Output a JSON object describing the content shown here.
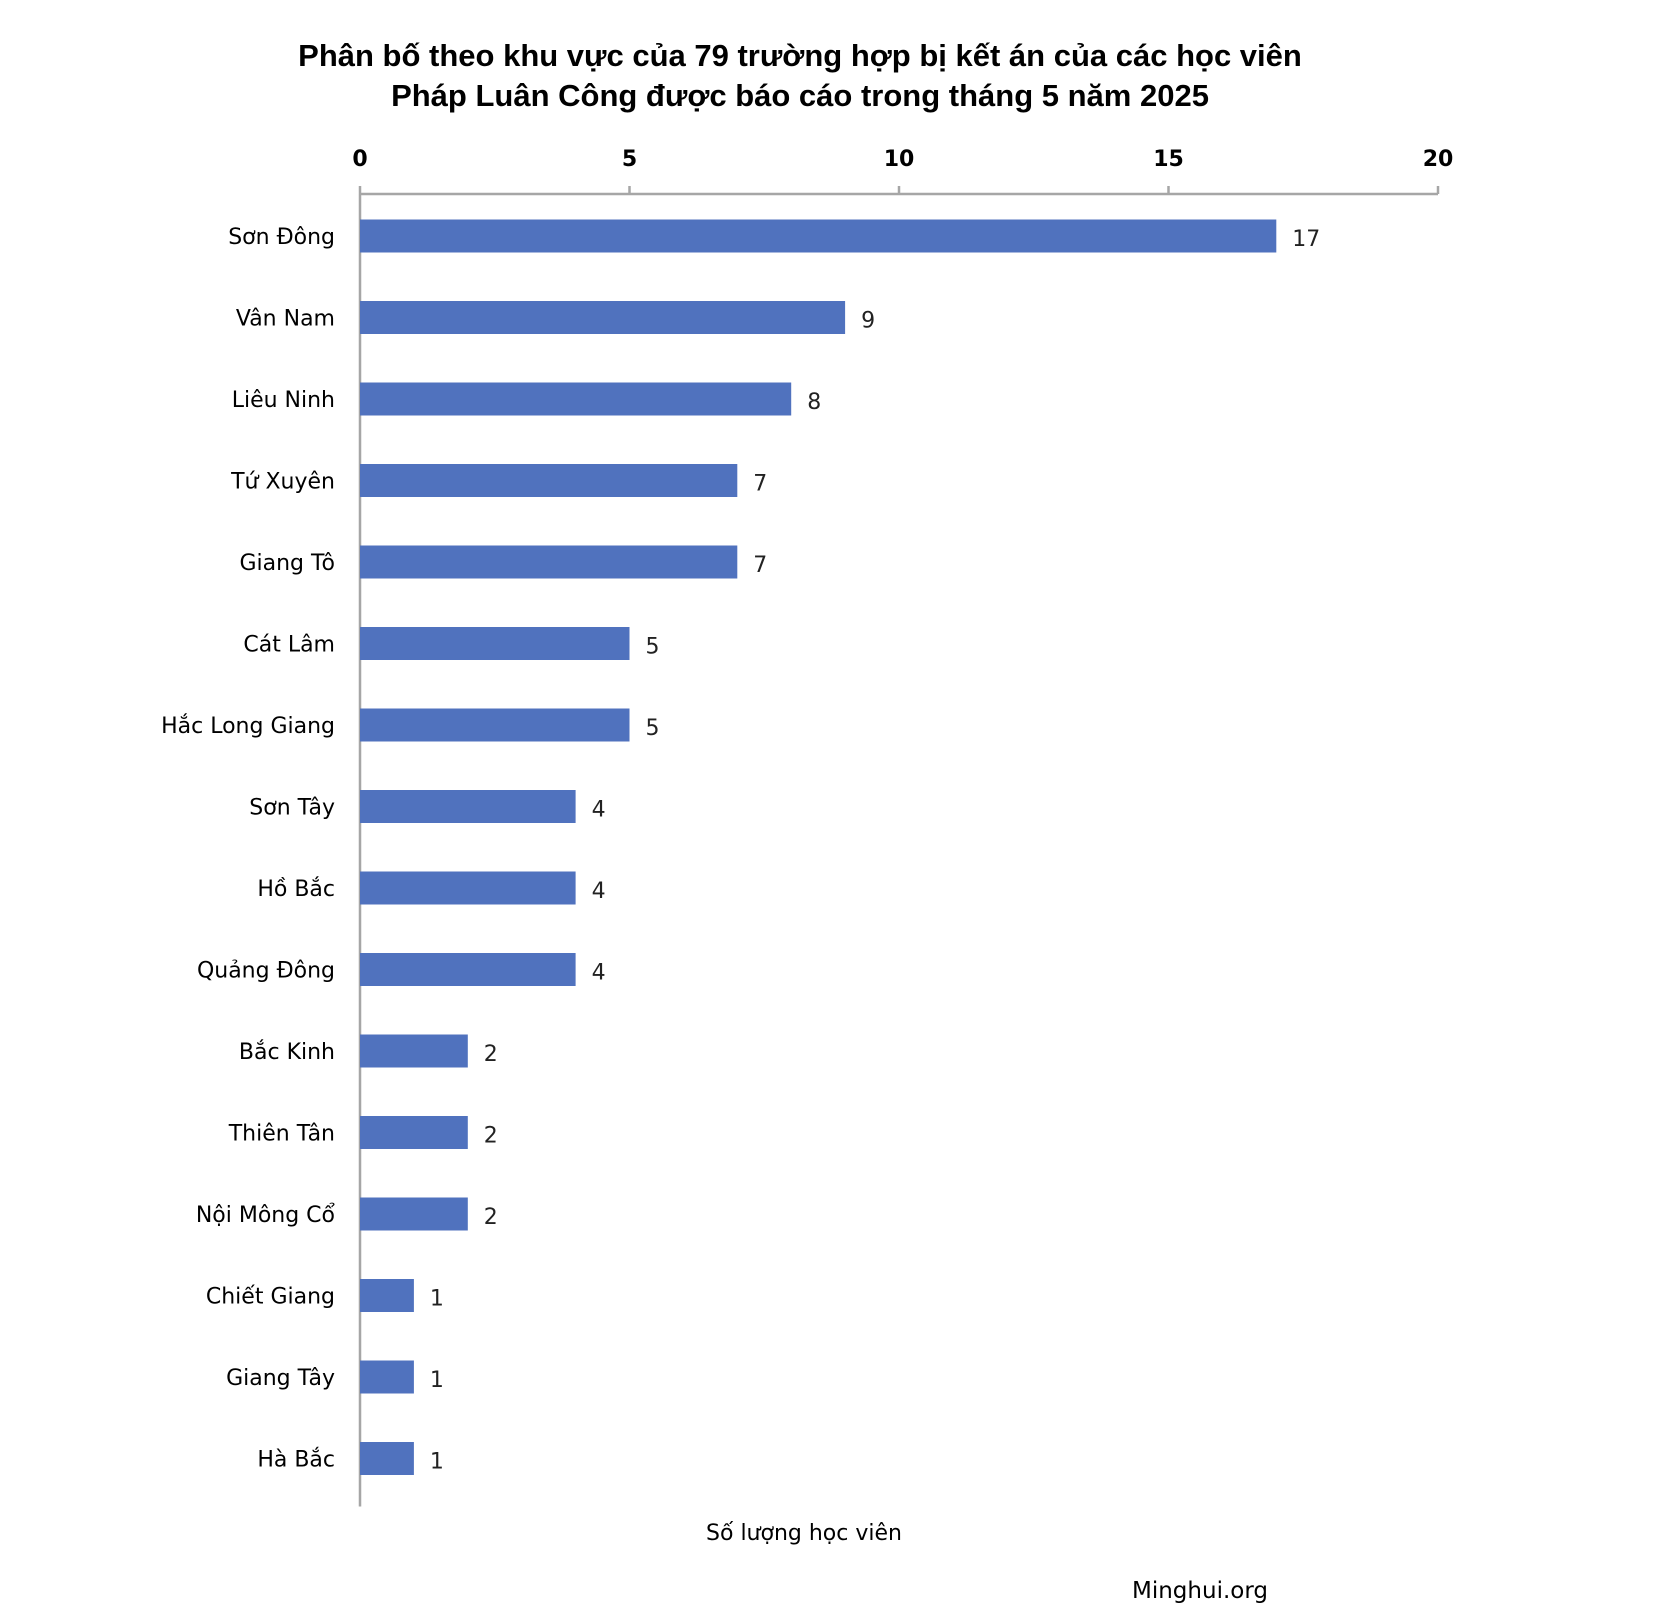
{
  "chart_data": {
    "type": "bar",
    "orientation": "horizontal",
    "title_lines": [
      "Phân bố theo khu vực của 79 trường hợp bị kết án của các học viên",
      "Pháp Luân Công được báo cáo trong tháng 5 năm 2025"
    ],
    "categories": [
      "Sơn Đông",
      "Vân Nam",
      "Liêu Ninh",
      "Tứ Xuyên",
      "Giang Tô",
      "Cát Lâm",
      "Hắc Long Giang",
      "Sơn Tây",
      "Hồ Bắc",
      "Quảng Đông",
      "Bắc Kinh",
      "Thiên Tân",
      "Nội Mông Cổ",
      "Chiết Giang",
      "Giang Tây",
      "Hà Bắc"
    ],
    "values": [
      17,
      9,
      8,
      7,
      7,
      5,
      5,
      4,
      4,
      4,
      2,
      2,
      2,
      1,
      1,
      1
    ],
    "xlim": [
      0,
      20
    ],
    "xticks": [
      0,
      5,
      10,
      15,
      20
    ],
    "x_axis_position": "top",
    "xlabel": "Số lượng học viên",
    "ylabel": "",
    "grid": false,
    "bar_color": "#5072BE",
    "axis_color": "#A6A6A6",
    "source": "Minghui.org"
  }
}
